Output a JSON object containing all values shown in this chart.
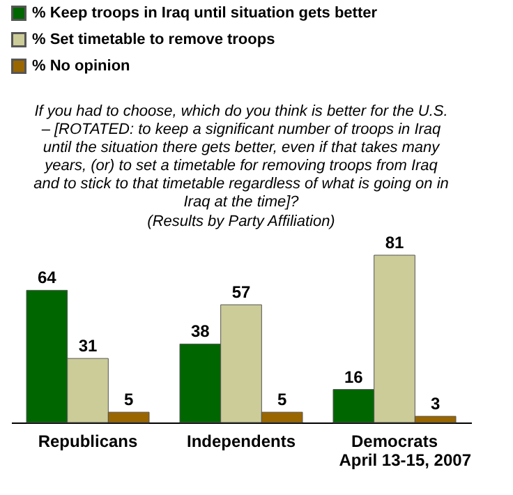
{
  "chart_data": {
    "type": "bar",
    "title": "If you had to choose, which do you think is better for the U.S.\n– [ROTATED: to keep a significant number of troops in Iraq\nuntil the situation there gets better, even if that takes many\nyears, (or) to set a timetable for removing troops from Iraq\nand to stick to that timetable regardless of what is going on in\nIraq at the time]?",
    "subtitle": "(Results by Party Affiliation)",
    "categories": [
      "Republicans",
      "Independents",
      "Democrats"
    ],
    "series": [
      {
        "name": "% Keep troops in Iraq until situation gets better",
        "color": "#006600",
        "values": [
          64,
          38,
          16
        ]
      },
      {
        "name": "% Set timetable to remove troops",
        "color": "#cccc99",
        "values": [
          31,
          57,
          81
        ]
      },
      {
        "name": "% No opinion",
        "color": "#996600",
        "values": [
          5,
          5,
          3
        ]
      }
    ],
    "data_labels": true,
    "legend": "top left",
    "grid": false,
    "annotations": [
      "April 13-15, 2007"
    ]
  }
}
